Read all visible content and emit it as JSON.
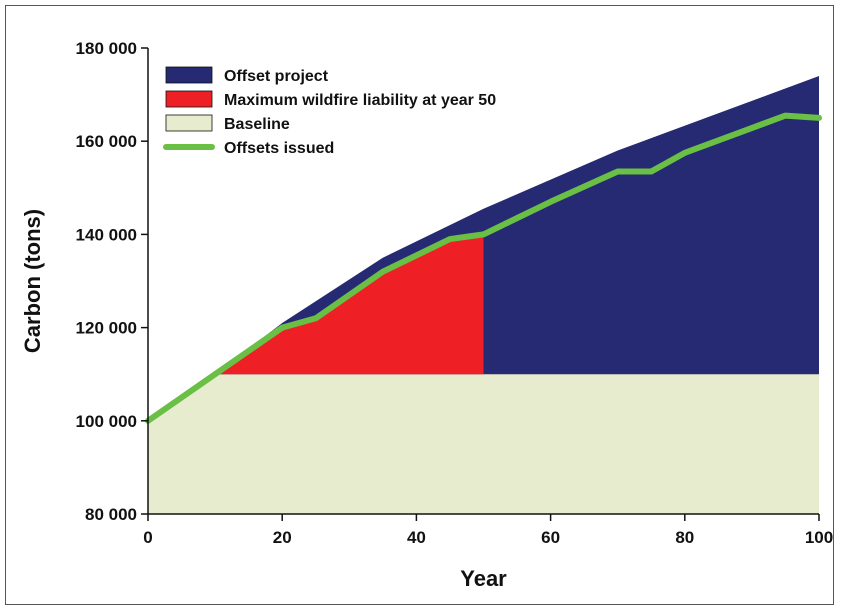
{
  "chart_data": {
    "type": "area",
    "xlabel": "Year",
    "ylabel": "Carbon (tons)",
    "xlim": [
      0,
      100
    ],
    "ylim": [
      80000,
      180000
    ],
    "x_ticks": [
      0,
      20,
      40,
      60,
      80,
      100
    ],
    "x_tick_labels": [
      "0",
      "20",
      "40",
      "60",
      "80",
      "100"
    ],
    "y_ticks": [
      80000,
      100000,
      120000,
      140000,
      160000,
      180000
    ],
    "y_tick_labels": [
      "80 000",
      "100 000",
      "120 000",
      "140 000",
      "160 000",
      "180 000"
    ],
    "grid": false,
    "legend_position": "top-left",
    "series": [
      {
        "name": "Offset project",
        "kind": "area",
        "color": "#262a72",
        "x": [
          0,
          10,
          20,
          35,
          50,
          70,
          100
        ],
        "y": [
          100000,
          110000,
          121000,
          135000,
          145500,
          158000,
          174000
        ]
      },
      {
        "name": "Maximum wildfire liability at year 50",
        "kind": "area",
        "color": "#ee1f25",
        "x": [
          10,
          20,
          25,
          35,
          45,
          50
        ],
        "y": [
          110000,
          120000,
          122000,
          132000,
          139000,
          140000
        ],
        "base": 110000
      },
      {
        "name": "Baseline",
        "kind": "area",
        "color": "#e8ecce",
        "x": [
          0,
          10,
          100
        ],
        "y": [
          100000,
          110000,
          110000
        ]
      },
      {
        "name": "Offsets issued",
        "kind": "line",
        "color": "#6abf45",
        "x": [
          0,
          10,
          20,
          25,
          35,
          45,
          50,
          60,
          70,
          75,
          80,
          95,
          100
        ],
        "y": [
          100000,
          110000,
          120000,
          122000,
          132000,
          139000,
          140000,
          147000,
          153500,
          153500,
          157500,
          165500,
          165000
        ]
      }
    ]
  }
}
